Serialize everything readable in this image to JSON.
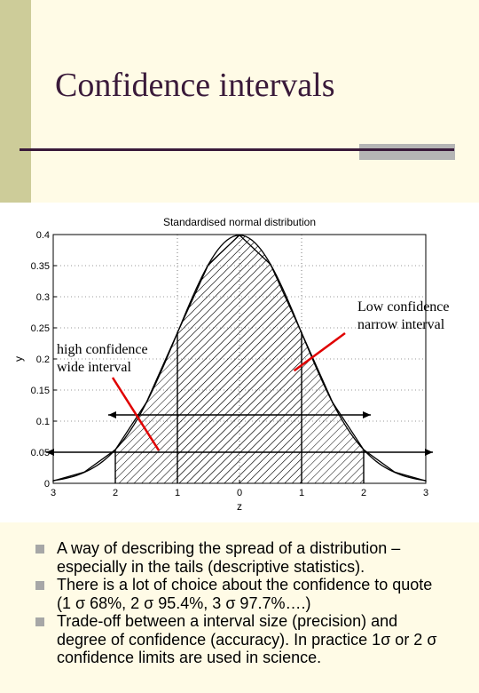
{
  "slide": {
    "title": "Confidence intervals"
  },
  "chart_data": {
    "type": "area",
    "title": "Standardised normal distribution",
    "xlabel": "z",
    "ylabel": "y",
    "xlim": [
      -3,
      3
    ],
    "ylim": [
      0,
      0.4
    ],
    "x_ticks": [
      "3",
      "2",
      "1",
      "0",
      "1",
      "2",
      "3"
    ],
    "y_ticks": [
      "0",
      "0.05",
      "0.1",
      "0.15",
      "0.2",
      "0.25",
      "0.3",
      "0.35",
      "0.4"
    ],
    "series": [
      {
        "x": [
          -3,
          -2.5,
          -2,
          -1.5,
          -1,
          -0.5,
          0,
          0.5,
          1,
          1.5,
          2,
          2.5,
          3
        ],
        "values": [
          0.004,
          0.018,
          0.054,
          0.13,
          0.242,
          0.352,
          0.399,
          0.352,
          0.242,
          0.13,
          0.054,
          0.018,
          0.004
        ]
      }
    ],
    "shaded_intervals": [
      [
        -2,
        2
      ],
      [
        -1,
        1
      ]
    ],
    "vertical_lines_at": [
      -2,
      -1,
      1,
      2
    ],
    "dotted_vertical_at": [
      -1,
      0,
      1
    ],
    "arrows": [
      {
        "at_y": 0.05,
        "from_x": -3,
        "to_x": 3
      },
      {
        "at_y": 0.11,
        "from_x": -2,
        "to_x": 2
      }
    ]
  },
  "annotations": {
    "low": {
      "line1": "Low confidence",
      "line2": "narrow interval"
    },
    "high": {
      "line1": "high confidence",
      "line2": "wide interval"
    }
  },
  "bullets": [
    "A way of describing the spread of a distribution – especially in the tails (descriptive statistics).",
    "There is a lot of choice about the confidence to quote (1 σ 68%, 2 σ 95.4%, 3 σ 97.7%….)",
    "Trade-off between a interval size (precision) and degree of confidence (accuracy). In practice 1σ or 2 σ confidence limits are used in science."
  ]
}
